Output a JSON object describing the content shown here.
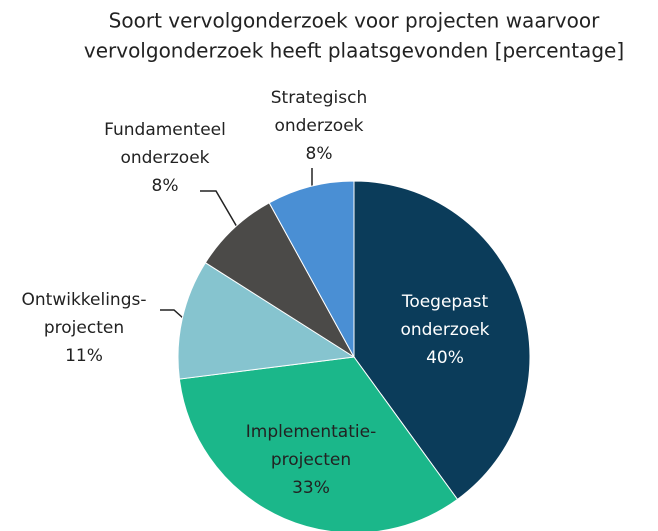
{
  "chart_data": {
    "type": "pie",
    "title": [
      "Soort vervolgonderzoek voor projecten waarvoor",
      "vervolgonderzoek heeft plaatsgevonden [percentage]"
    ],
    "categories": [
      [
        "Toegepast",
        "onderzoek"
      ],
      [
        "Implementatie-",
        "projecten"
      ],
      [
        "Ontwikkelings-",
        "projecten"
      ],
      [
        "Fundamenteel",
        "onderzoek"
      ],
      [
        "Strategisch",
        "onderzoek"
      ]
    ],
    "values": [
      40,
      33,
      11,
      8,
      8
    ],
    "value_labels": [
      "40%",
      "33%",
      "11%",
      "8%",
      "8%"
    ],
    "colors": [
      "#0b3c5a",
      "#1bb78a",
      "#86c4cf",
      "#4b4a48",
      "#4a8fd4"
    ]
  }
}
